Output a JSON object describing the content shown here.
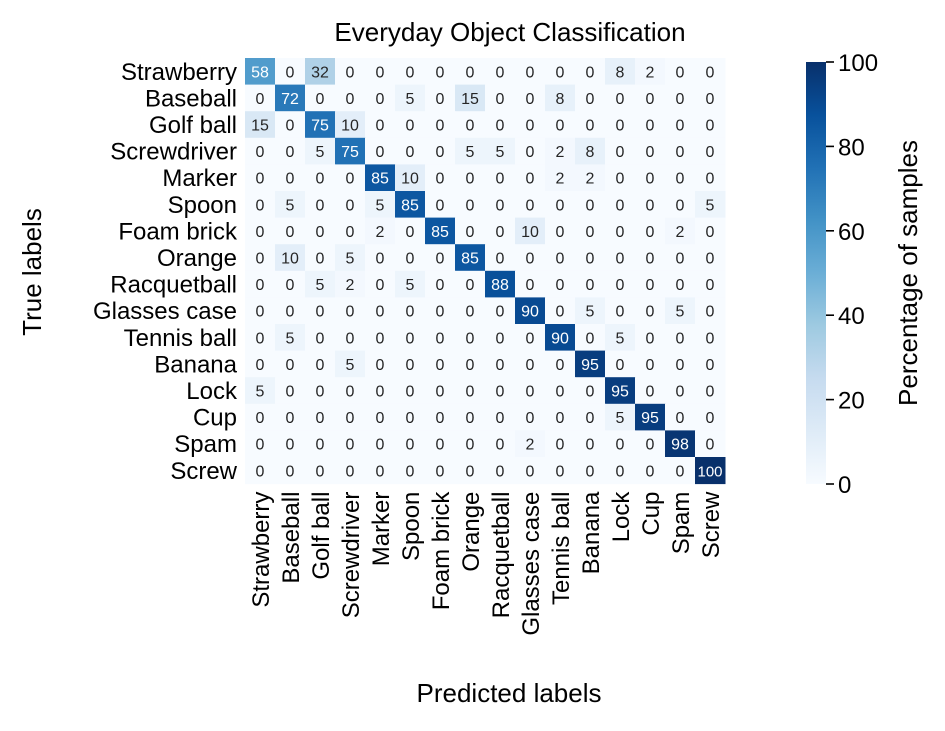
{
  "chart_data": {
    "type": "heatmap",
    "title": "Everyday Object Classification",
    "xlabel": "Predicted labels",
    "ylabel": "True labels",
    "colorbar_label": "Percentage of samples",
    "colorbar_ticks": [
      0,
      20,
      40,
      60,
      80,
      100
    ],
    "colorbar_tick_labels": [
      "0",
      "20",
      "40",
      "60",
      "80",
      "100"
    ],
    "vmin": 0,
    "vmax": 100,
    "colormap": "Blues",
    "categories": [
      "Strawberry",
      "Baseball",
      "Golf ball",
      "Screwdriver",
      "Marker",
      "Spoon",
      "Foam brick",
      "Orange",
      "Racquetball",
      "Glasses case",
      "Tennis ball",
      "Banana",
      "Lock",
      "Cup",
      "Spam",
      "Screw"
    ],
    "values": [
      [
        58,
        0,
        32,
        0,
        0,
        0,
        0,
        0,
        0,
        0,
        0,
        0,
        8,
        2,
        0,
        0
      ],
      [
        0,
        72,
        0,
        0,
        0,
        5,
        0,
        15,
        0,
        0,
        8,
        0,
        0,
        0,
        0,
        0
      ],
      [
        15,
        0,
        75,
        10,
        0,
        0,
        0,
        0,
        0,
        0,
        0,
        0,
        0,
        0,
        0,
        0
      ],
      [
        0,
        0,
        5,
        75,
        0,
        0,
        0,
        5,
        5,
        0,
        2,
        8,
        0,
        0,
        0,
        0
      ],
      [
        0,
        0,
        0,
        0,
        85,
        10,
        0,
        0,
        0,
        0,
        2,
        2,
        0,
        0,
        0,
        0
      ],
      [
        0,
        5,
        0,
        0,
        5,
        85,
        0,
        0,
        0,
        0,
        0,
        0,
        0,
        0,
        0,
        5
      ],
      [
        0,
        0,
        0,
        0,
        2,
        0,
        85,
        0,
        0,
        10,
        0,
        0,
        0,
        0,
        2,
        0
      ],
      [
        0,
        10,
        0,
        5,
        0,
        0,
        0,
        85,
        0,
        0,
        0,
        0,
        0,
        0,
        0,
        0
      ],
      [
        0,
        0,
        5,
        2,
        0,
        5,
        0,
        0,
        88,
        0,
        0,
        0,
        0,
        0,
        0,
        0
      ],
      [
        0,
        0,
        0,
        0,
        0,
        0,
        0,
        0,
        0,
        90,
        0,
        5,
        0,
        0,
        5,
        0
      ],
      [
        0,
        5,
        0,
        0,
        0,
        0,
        0,
        0,
        0,
        0,
        90,
        0,
        5,
        0,
        0,
        0
      ],
      [
        0,
        0,
        0,
        5,
        0,
        0,
        0,
        0,
        0,
        0,
        0,
        95,
        0,
        0,
        0,
        0
      ],
      [
        5,
        0,
        0,
        0,
        0,
        0,
        0,
        0,
        0,
        0,
        0,
        0,
        95,
        0,
        0,
        0
      ],
      [
        0,
        0,
        0,
        0,
        0,
        0,
        0,
        0,
        0,
        0,
        0,
        0,
        5,
        95,
        0,
        0
      ],
      [
        0,
        0,
        0,
        0,
        0,
        0,
        0,
        0,
        0,
        2,
        0,
        0,
        0,
        0,
        98,
        0
      ],
      [
        0,
        0,
        0,
        0,
        0,
        0,
        0,
        0,
        0,
        0,
        0,
        0,
        0,
        0,
        0,
        100
      ]
    ]
  }
}
